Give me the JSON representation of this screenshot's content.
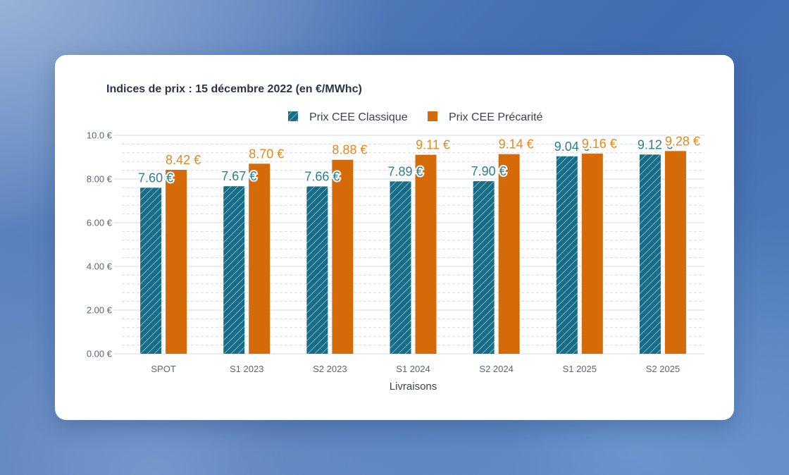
{
  "chart_data": {
    "type": "bar",
    "title": "Indices de prix : 15 décembre 2022 (en €/MWhc)",
    "xlabel": "Livraisons",
    "ylabel": "",
    "categories": [
      "SPOT",
      "S1 2023",
      "S2 2023",
      "S1 2024",
      "S2 2024",
      "S1 2025",
      "S2 2025"
    ],
    "series": [
      {
        "name": "Prix CEE Classique",
        "values": [
          7.6,
          7.67,
          7.66,
          7.89,
          7.9,
          9.04,
          9.12
        ],
        "labels": [
          "7.60 €",
          "7.67 €",
          "7.66 €",
          "7.89 €",
          "7.90 €",
          "9.04 €",
          "9.12 €"
        ],
        "color": "#176c87",
        "pattern": "hatched"
      },
      {
        "name": "Prix CEE Précarité",
        "values": [
          8.42,
          8.7,
          8.88,
          9.11,
          9.14,
          9.16,
          9.28
        ],
        "labels": [
          "8.42 €",
          "8.70 €",
          "8.88 €",
          "9.11 €",
          "9.14 €",
          "9.16 €",
          "9.28 €"
        ],
        "color": "#d46b08",
        "pattern": "solid"
      }
    ],
    "yticks": [
      0,
      2,
      4,
      6,
      8,
      10
    ],
    "ytick_labels": [
      "0.00 €",
      "2.00 €",
      "4.00 €",
      "6.00 €",
      "8.00 €",
      "10.0 €"
    ],
    "ylim": [
      0,
      10
    ],
    "grid": true,
    "legend": "top-center",
    "label_colors": {
      "Prix CEE Classique": "#2b7d98",
      "Prix CEE Précarité": "#e8871e"
    }
  }
}
